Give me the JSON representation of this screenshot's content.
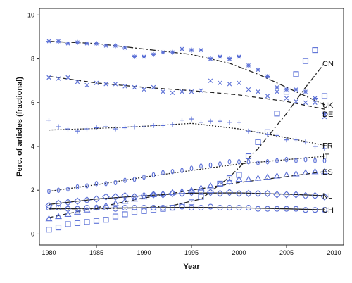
{
  "chart_data": {
    "type": "scatter",
    "title": "",
    "xlabel": "Year",
    "ylabel": "Perc. of articles (fractional)",
    "xlim": [
      1979,
      2011
    ],
    "ylim": [
      -0.5,
      10.3
    ],
    "xticks": [
      1980,
      1985,
      1990,
      1995,
      2000,
      2005,
      2010
    ],
    "yticks": [
      0,
      2,
      4,
      6,
      8,
      10
    ],
    "grid": false,
    "legend": "labels at line ends",
    "marker_color": "#5a6fd6",
    "line_color": "#222222",
    "series": [
      {
        "name": "CN",
        "marker": "square",
        "line_style": "dashdot",
        "x": [
          1980,
          1981,
          1982,
          1983,
          1984,
          1985,
          1986,
          1987,
          1988,
          1989,
          1990,
          1991,
          1992,
          1993,
          1994,
          1995,
          1996,
          1997,
          1998,
          1999,
          2000,
          2001,
          2002,
          2003,
          2004,
          2005,
          2006,
          2007,
          2008,
          2009
        ],
        "values": [
          0.2,
          0.3,
          0.45,
          0.5,
          0.55,
          0.6,
          0.65,
          0.8,
          0.9,
          1.0,
          1.05,
          1.1,
          1.15,
          1.2,
          1.3,
          1.45,
          1.7,
          2.0,
          2.3,
          2.55,
          2.7,
          3.55,
          4.2,
          4.65,
          5.5,
          6.5,
          7.3,
          7.9,
          8.4,
          6.3
        ],
        "fit": [
          [
            1980,
            1.15
          ],
          [
            1985,
            1.15
          ],
          [
            1990,
            1.2
          ],
          [
            1993,
            1.3
          ],
          [
            1996,
            1.6
          ],
          [
            1999,
            2.6
          ],
          [
            2002,
            3.9
          ],
          [
            2005,
            5.5
          ],
          [
            2007,
            6.7
          ],
          [
            2009,
            7.8
          ]
        ]
      },
      {
        "name": "UK",
        "marker": "star",
        "line_style": "dashdot",
        "x": [
          1980,
          1981,
          1982,
          1983,
          1984,
          1985,
          1986,
          1987,
          1988,
          1989,
          1990,
          1991,
          1992,
          1993,
          1994,
          1995,
          1996,
          1997,
          1998,
          1999,
          2000,
          2001,
          2002,
          2003,
          2004,
          2005,
          2006,
          2007,
          2008,
          2009
        ],
        "values": [
          8.8,
          8.8,
          8.7,
          8.75,
          8.7,
          8.7,
          8.6,
          8.6,
          8.5,
          8.1,
          8.1,
          8.2,
          8.3,
          8.3,
          8.45,
          8.4,
          8.4,
          8.0,
          8.1,
          8.0,
          8.1,
          7.7,
          7.5,
          7.2,
          6.7,
          6.6,
          6.6,
          6.5,
          6.2,
          5.5
        ],
        "fit": [
          [
            1980,
            8.8
          ],
          [
            1985,
            8.7
          ],
          [
            1990,
            8.45
          ],
          [
            1995,
            8.2
          ],
          [
            1999,
            7.8
          ],
          [
            2002,
            7.3
          ],
          [
            2005,
            6.7
          ],
          [
            2008,
            6.1
          ],
          [
            2009,
            5.9
          ]
        ]
      },
      {
        "name": "DE",
        "marker": "x",
        "line_style": "dashed",
        "x": [
          1980,
          1981,
          1982,
          1983,
          1984,
          1985,
          1986,
          1987,
          1988,
          1989,
          1990,
          1991,
          1992,
          1993,
          1994,
          1995,
          1996,
          1997,
          1998,
          1999,
          2000,
          2001,
          2002,
          2003,
          2004,
          2005,
          2006,
          2007,
          2008,
          2009
        ],
        "values": [
          7.15,
          7.1,
          7.15,
          6.95,
          6.8,
          6.9,
          6.85,
          6.85,
          6.75,
          6.7,
          6.6,
          6.7,
          6.5,
          6.45,
          6.5,
          6.5,
          6.55,
          7.0,
          6.9,
          6.85,
          6.9,
          6.6,
          6.5,
          6.3,
          6.5,
          6.2,
          6.05,
          6.0,
          6.0,
          5.35
        ],
        "fit": [
          [
            1980,
            7.2
          ],
          [
            1985,
            6.9
          ],
          [
            1990,
            6.7
          ],
          [
            1995,
            6.55
          ],
          [
            2000,
            6.35
          ],
          [
            2005,
            6.05
          ],
          [
            2009,
            5.7
          ]
        ]
      },
      {
        "name": "FR",
        "marker": "plus",
        "line_style": "dotted",
        "x": [
          1980,
          1981,
          1982,
          1983,
          1984,
          1985,
          1986,
          1987,
          1988,
          1989,
          1990,
          1991,
          1992,
          1993,
          1994,
          1995,
          1996,
          1997,
          1998,
          1999,
          2000,
          2001,
          2002,
          2003,
          2004,
          2005,
          2006,
          2007,
          2008,
          2009
        ],
        "values": [
          5.2,
          4.9,
          4.8,
          4.7,
          4.8,
          4.85,
          4.9,
          4.8,
          4.85,
          4.9,
          4.9,
          4.95,
          4.95,
          5.0,
          5.2,
          5.25,
          5.1,
          5.15,
          5.15,
          5.1,
          5.1,
          4.7,
          4.65,
          4.55,
          4.5,
          4.3,
          4.3,
          4.2,
          4.0,
          3.9
        ],
        "fit": [
          [
            1980,
            4.75
          ],
          [
            1985,
            4.82
          ],
          [
            1990,
            4.92
          ],
          [
            1995,
            5.05
          ],
          [
            2000,
            4.8
          ],
          [
            2005,
            4.4
          ],
          [
            2009,
            4.05
          ]
        ]
      },
      {
        "name": "IT",
        "marker": "oval",
        "line_style": "dotted",
        "x": [
          1980,
          1981,
          1982,
          1983,
          1984,
          1985,
          1986,
          1987,
          1988,
          1989,
          1990,
          1991,
          1992,
          1993,
          1994,
          1995,
          1996,
          1997,
          1998,
          1999,
          2000,
          2001,
          2002,
          2003,
          2004,
          2005,
          2006,
          2007,
          2008,
          2009
        ],
        "values": [
          1.95,
          2.0,
          2.05,
          2.15,
          2.2,
          2.3,
          2.3,
          2.35,
          2.45,
          2.5,
          2.6,
          2.7,
          2.8,
          2.85,
          2.9,
          3.0,
          3.1,
          3.15,
          3.2,
          3.3,
          3.3,
          3.3,
          3.25,
          3.3,
          3.35,
          3.4,
          3.35,
          3.4,
          3.35,
          3.35
        ],
        "fit": [
          [
            1980,
            1.95
          ],
          [
            1985,
            2.25
          ],
          [
            1990,
            2.6
          ],
          [
            1995,
            2.9
          ],
          [
            2000,
            3.2
          ],
          [
            2005,
            3.4
          ],
          [
            2009,
            3.55
          ]
        ]
      },
      {
        "name": "ES",
        "marker": "triangle",
        "line_style": "dashed",
        "x": [
          1980,
          1981,
          1982,
          1983,
          1984,
          1985,
          1986,
          1987,
          1988,
          1989,
          1990,
          1991,
          1992,
          1993,
          1994,
          1995,
          1996,
          1997,
          1998,
          1999,
          2000,
          2001,
          2002,
          2003,
          2004,
          2005,
          2006,
          2007,
          2008,
          2009
        ],
        "values": [
          0.7,
          0.8,
          0.9,
          1.0,
          1.1,
          1.2,
          1.3,
          1.4,
          1.5,
          1.6,
          1.7,
          1.8,
          1.85,
          1.9,
          1.95,
          2.0,
          2.1,
          2.2,
          2.3,
          2.4,
          2.5,
          2.5,
          2.55,
          2.6,
          2.65,
          2.7,
          2.75,
          2.8,
          2.85,
          2.85
        ],
        "fit": [
          [
            1980,
            0.75
          ],
          [
            1985,
            1.2
          ],
          [
            1990,
            1.65
          ],
          [
            1995,
            2.0
          ],
          [
            2000,
            2.35
          ],
          [
            2005,
            2.62
          ],
          [
            2009,
            2.85
          ]
        ]
      },
      {
        "name": "NL",
        "marker": "diamond",
        "line_style": "solid",
        "x": [
          1980,
          1981,
          1982,
          1983,
          1984,
          1985,
          1986,
          1987,
          1988,
          1989,
          1990,
          1991,
          1992,
          1993,
          1994,
          1995,
          1996,
          1997,
          1998,
          1999,
          2000,
          2001,
          2002,
          2003,
          2004,
          2005,
          2006,
          2007,
          2008,
          2009
        ],
        "values": [
          1.3,
          1.4,
          1.45,
          1.5,
          1.55,
          1.6,
          1.7,
          1.7,
          1.75,
          1.7,
          1.75,
          1.8,
          1.8,
          1.85,
          1.85,
          1.9,
          1.95,
          1.9,
          1.85,
          1.9,
          1.85,
          1.85,
          1.85,
          1.85,
          1.8,
          1.8,
          1.8,
          1.75,
          1.75,
          1.7
        ],
        "fit": [
          [
            1980,
            1.35
          ],
          [
            1985,
            1.6
          ],
          [
            1990,
            1.75
          ],
          [
            1995,
            1.87
          ],
          [
            2000,
            1.88
          ],
          [
            2005,
            1.82
          ],
          [
            2009,
            1.75
          ]
        ]
      },
      {
        "name": "CH",
        "marker": "circle",
        "line_style": "solid",
        "x": [
          1980,
          1981,
          1982,
          1983,
          1984,
          1985,
          1986,
          1987,
          1988,
          1989,
          1990,
          1991,
          1992,
          1993,
          1994,
          1995,
          1996,
          1997,
          1998,
          1999,
          2000,
          2001,
          2002,
          2003,
          2004,
          2005,
          2006,
          2007,
          2008,
          2009
        ],
        "values": [
          1.2,
          1.2,
          1.15,
          1.15,
          1.2,
          1.2,
          1.2,
          1.15,
          1.2,
          1.2,
          1.2,
          1.2,
          1.2,
          1.2,
          1.25,
          1.2,
          1.2,
          1.25,
          1.2,
          1.2,
          1.2,
          1.2,
          1.15,
          1.15,
          1.15,
          1.15,
          1.15,
          1.1,
          1.1,
          1.1
        ],
        "fit": [
          [
            1980,
            1.15
          ],
          [
            1985,
            1.18
          ],
          [
            1990,
            1.2
          ],
          [
            1995,
            1.22
          ],
          [
            2000,
            1.2
          ],
          [
            2005,
            1.15
          ],
          [
            2009,
            1.1
          ]
        ]
      }
    ]
  }
}
